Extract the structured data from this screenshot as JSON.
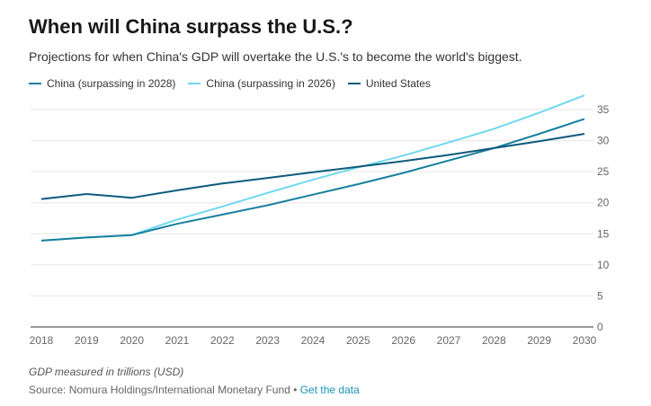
{
  "header": {
    "title": "When will China surpass the U.S.?",
    "subtitle": "Projections for when China's GDP will overtake the U.S.'s to become the world's biggest."
  },
  "footer": {
    "note": "GDP measured in trillions (USD)",
    "source": "Source: Nomura Holdings/International Monetary Fund",
    "separator": "•",
    "link": "Get the data"
  },
  "chart_data": {
    "type": "line",
    "x": [
      2018,
      2019,
      2020,
      2021,
      2022,
      2023,
      2024,
      2025,
      2026,
      2027,
      2028,
      2029,
      2030
    ],
    "ylim": [
      0,
      35
    ],
    "yticks": [
      0,
      5,
      10,
      15,
      20,
      25,
      30,
      35
    ],
    "y_axis_side": "right",
    "grid": "horizontal",
    "legend_position": "top",
    "series": [
      {
        "name": "China (surpassing in 2028)",
        "color": "#177f9e",
        "values": [
          13.9,
          14.4,
          14.8,
          16.6,
          18.1,
          19.6,
          21.3,
          23.0,
          24.8,
          26.8,
          28.8,
          31.1,
          33.5
        ]
      },
      {
        "name": "China (surpassing in 2026)",
        "color": "#6fd8ef",
        "values": [
          13.9,
          14.4,
          14.8,
          17.3,
          19.4,
          21.6,
          23.7,
          25.7,
          27.6,
          29.7,
          31.9,
          34.5,
          37.3
        ]
      },
      {
        "name": "United States",
        "color": "#0e5a7c",
        "values": [
          20.6,
          21.4,
          20.8,
          22.0,
          23.1,
          24.0,
          24.9,
          25.8,
          26.7,
          27.7,
          28.8,
          29.9,
          31.1
        ]
      }
    ]
  }
}
